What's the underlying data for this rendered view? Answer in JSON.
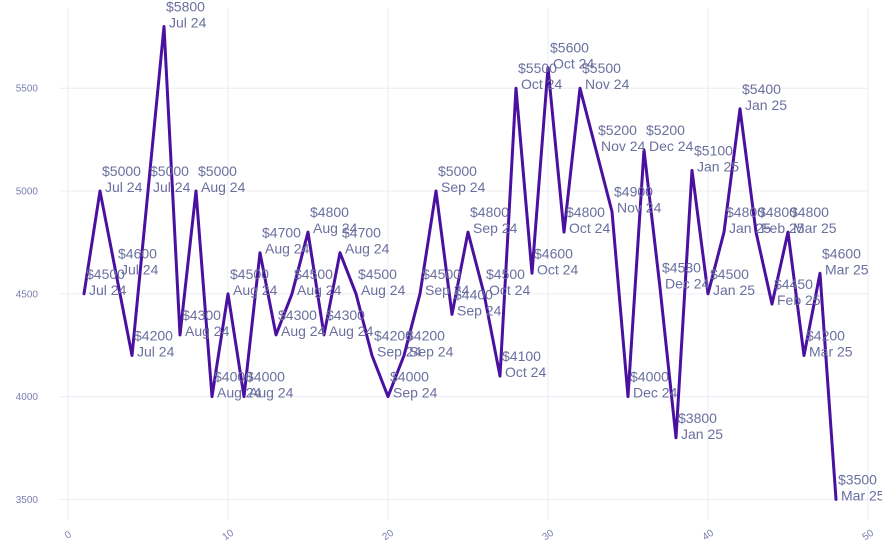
{
  "chart_data": {
    "type": "line",
    "title": "",
    "xlabel": "",
    "ylabel": "",
    "xlim": [
      -0.5,
      50
    ],
    "ylim": [
      3400,
      5890
    ],
    "x_ticks": [
      0,
      10,
      20,
      30,
      40,
      50
    ],
    "y_ticks": [
      3500,
      4000,
      4500,
      5000,
      5500
    ],
    "grid": true,
    "legend": "none",
    "line_color": "#4a10a0",
    "series": [
      {
        "x": [
          1,
          2,
          3,
          4,
          5,
          6,
          7,
          8,
          9,
          10,
          11,
          12,
          13,
          14,
          15,
          16,
          17,
          18,
          19,
          20,
          21,
          22,
          23,
          24,
          25,
          26,
          27,
          28,
          29,
          30,
          31,
          32,
          33,
          34,
          35,
          36,
          37,
          38,
          39,
          40,
          41,
          42,
          43,
          44,
          45,
          46,
          47,
          48
        ],
        "y": [
          4500,
          5000,
          4600,
          4200,
          5000,
          5800,
          4300,
          5000,
          4000,
          4500,
          4000,
          4700,
          4300,
          4500,
          4800,
          4300,
          4700,
          4500,
          4200,
          4000,
          4200,
          4500,
          5000,
          4400,
          4800,
          4500,
          4100,
          5500,
          4600,
          5600,
          4800,
          5500,
          5200,
          4900,
          4000,
          5200,
          4530,
          3800,
          5100,
          4500,
          4800,
          5400,
          4800,
          4450,
          4800,
          4200,
          4600,
          3500
        ]
      }
    ],
    "point_labels": [
      {
        "value": "$4500",
        "date": "Jul 24"
      },
      {
        "value": "$5000",
        "date": "Jul 24"
      },
      {
        "value": "$4600",
        "date": "Jul 24"
      },
      {
        "value": "$4200",
        "date": "Jul 24"
      },
      {
        "value": "$5000",
        "date": "Jul 24"
      },
      {
        "value": "$5800",
        "date": "Jul 24"
      },
      {
        "value": "$4300",
        "date": "Aug 24"
      },
      {
        "value": "$5000",
        "date": "Aug 24"
      },
      {
        "value": "$4000",
        "date": "Aug 24"
      },
      {
        "value": "$4500",
        "date": "Aug 24"
      },
      {
        "value": "$4000",
        "date": "Aug 24"
      },
      {
        "value": "$4700",
        "date": "Aug 24"
      },
      {
        "value": "$4300",
        "date": "Aug 24"
      },
      {
        "value": "$4500",
        "date": "Aug 24"
      },
      {
        "value": "$4800",
        "date": "Aug 24"
      },
      {
        "value": "$4300",
        "date": "Aug 24"
      },
      {
        "value": "$4700",
        "date": "Aug 24"
      },
      {
        "value": "$4500",
        "date": "Aug 24"
      },
      {
        "value": "$4200",
        "date": "Sep 24"
      },
      {
        "value": "$4000",
        "date": "Sep 24"
      },
      {
        "value": "$4200",
        "date": "Sep 24"
      },
      {
        "value": "$4500",
        "date": "Sep 24"
      },
      {
        "value": "$5000",
        "date": "Sep 24"
      },
      {
        "value": "$4400",
        "date": "Sep 24"
      },
      {
        "value": "$4800",
        "date": "Sep 24"
      },
      {
        "value": "$4500",
        "date": "Oct 24"
      },
      {
        "value": "$4100",
        "date": "Oct 24"
      },
      {
        "value": "$5500",
        "date": "Oct 24"
      },
      {
        "value": "$4600",
        "date": "Oct 24"
      },
      {
        "value": "$5600",
        "date": "Oct 24"
      },
      {
        "value": "$4800",
        "date": "Oct 24"
      },
      {
        "value": "$5500",
        "date": "Nov 24"
      },
      {
        "value": "$5200",
        "date": "Nov 24"
      },
      {
        "value": "$4900",
        "date": "Nov 24"
      },
      {
        "value": "$4000",
        "date": "Dec 24"
      },
      {
        "value": "$5200",
        "date": "Dec 24"
      },
      {
        "value": "$4530",
        "date": "Dec 24"
      },
      {
        "value": "$3800",
        "date": "Jan 25"
      },
      {
        "value": "$5100",
        "date": "Jan 25"
      },
      {
        "value": "$4500",
        "date": "Jan 25"
      },
      {
        "value": "$4800",
        "date": "Jan 25"
      },
      {
        "value": "$5400",
        "date": "Jan 25"
      },
      {
        "value": "$4800",
        "date": "Feb 25"
      },
      {
        "value": "$4450",
        "date": "Feb 25"
      },
      {
        "value": "$4800",
        "date": "Mar 25"
      },
      {
        "value": "$4200",
        "date": "Mar 25"
      },
      {
        "value": "$4600",
        "date": "Mar 25"
      },
      {
        "value": "$3500",
        "date": "Mar 25"
      }
    ]
  }
}
